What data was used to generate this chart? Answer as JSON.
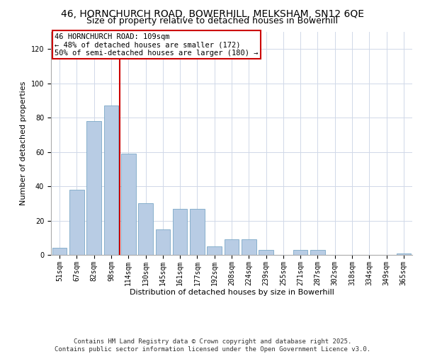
{
  "title_line1": "46, HORNCHURCH ROAD, BOWERHILL, MELKSHAM, SN12 6QE",
  "title_line2": "Size of property relative to detached houses in Bowerhill",
  "xlabel": "Distribution of detached houses by size in Bowerhill",
  "ylabel": "Number of detached properties",
  "bar_labels": [
    "51sqm",
    "67sqm",
    "82sqm",
    "98sqm",
    "114sqm",
    "130sqm",
    "145sqm",
    "161sqm",
    "177sqm",
    "192sqm",
    "208sqm",
    "224sqm",
    "239sqm",
    "255sqm",
    "271sqm",
    "287sqm",
    "302sqm",
    "318sqm",
    "334sqm",
    "349sqm",
    "365sqm"
  ],
  "bar_values": [
    4,
    38,
    78,
    87,
    59,
    30,
    15,
    27,
    27,
    5,
    9,
    9,
    3,
    0,
    3,
    3,
    0,
    0,
    0,
    0,
    1
  ],
  "bar_color": "#b8cce4",
  "bar_edge_color": "#7ba7c7",
  "vline_x_index": 3.5,
  "vline_color": "#cc0000",
  "annotation_title": "46 HORNCHURCH ROAD: 109sqm",
  "annotation_line1": "← 48% of detached houses are smaller (172)",
  "annotation_line2": "50% of semi-detached houses are larger (180) →",
  "annotation_box_color": "#ffffff",
  "annotation_box_edge_color": "#cc0000",
  "ylim": [
    0,
    130
  ],
  "yticks": [
    0,
    20,
    40,
    60,
    80,
    100,
    120
  ],
  "footer_line1": "Contains HM Land Registry data © Crown copyright and database right 2025.",
  "footer_line2": "Contains public sector information licensed under the Open Government Licence v3.0.",
  "background_color": "#ffffff",
  "grid_color": "#d0d8e8",
  "title_fontsize": 10,
  "subtitle_fontsize": 9,
  "axis_label_fontsize": 8,
  "tick_fontsize": 7,
  "footer_fontsize": 6.5,
  "annotation_fontsize": 7.5
}
